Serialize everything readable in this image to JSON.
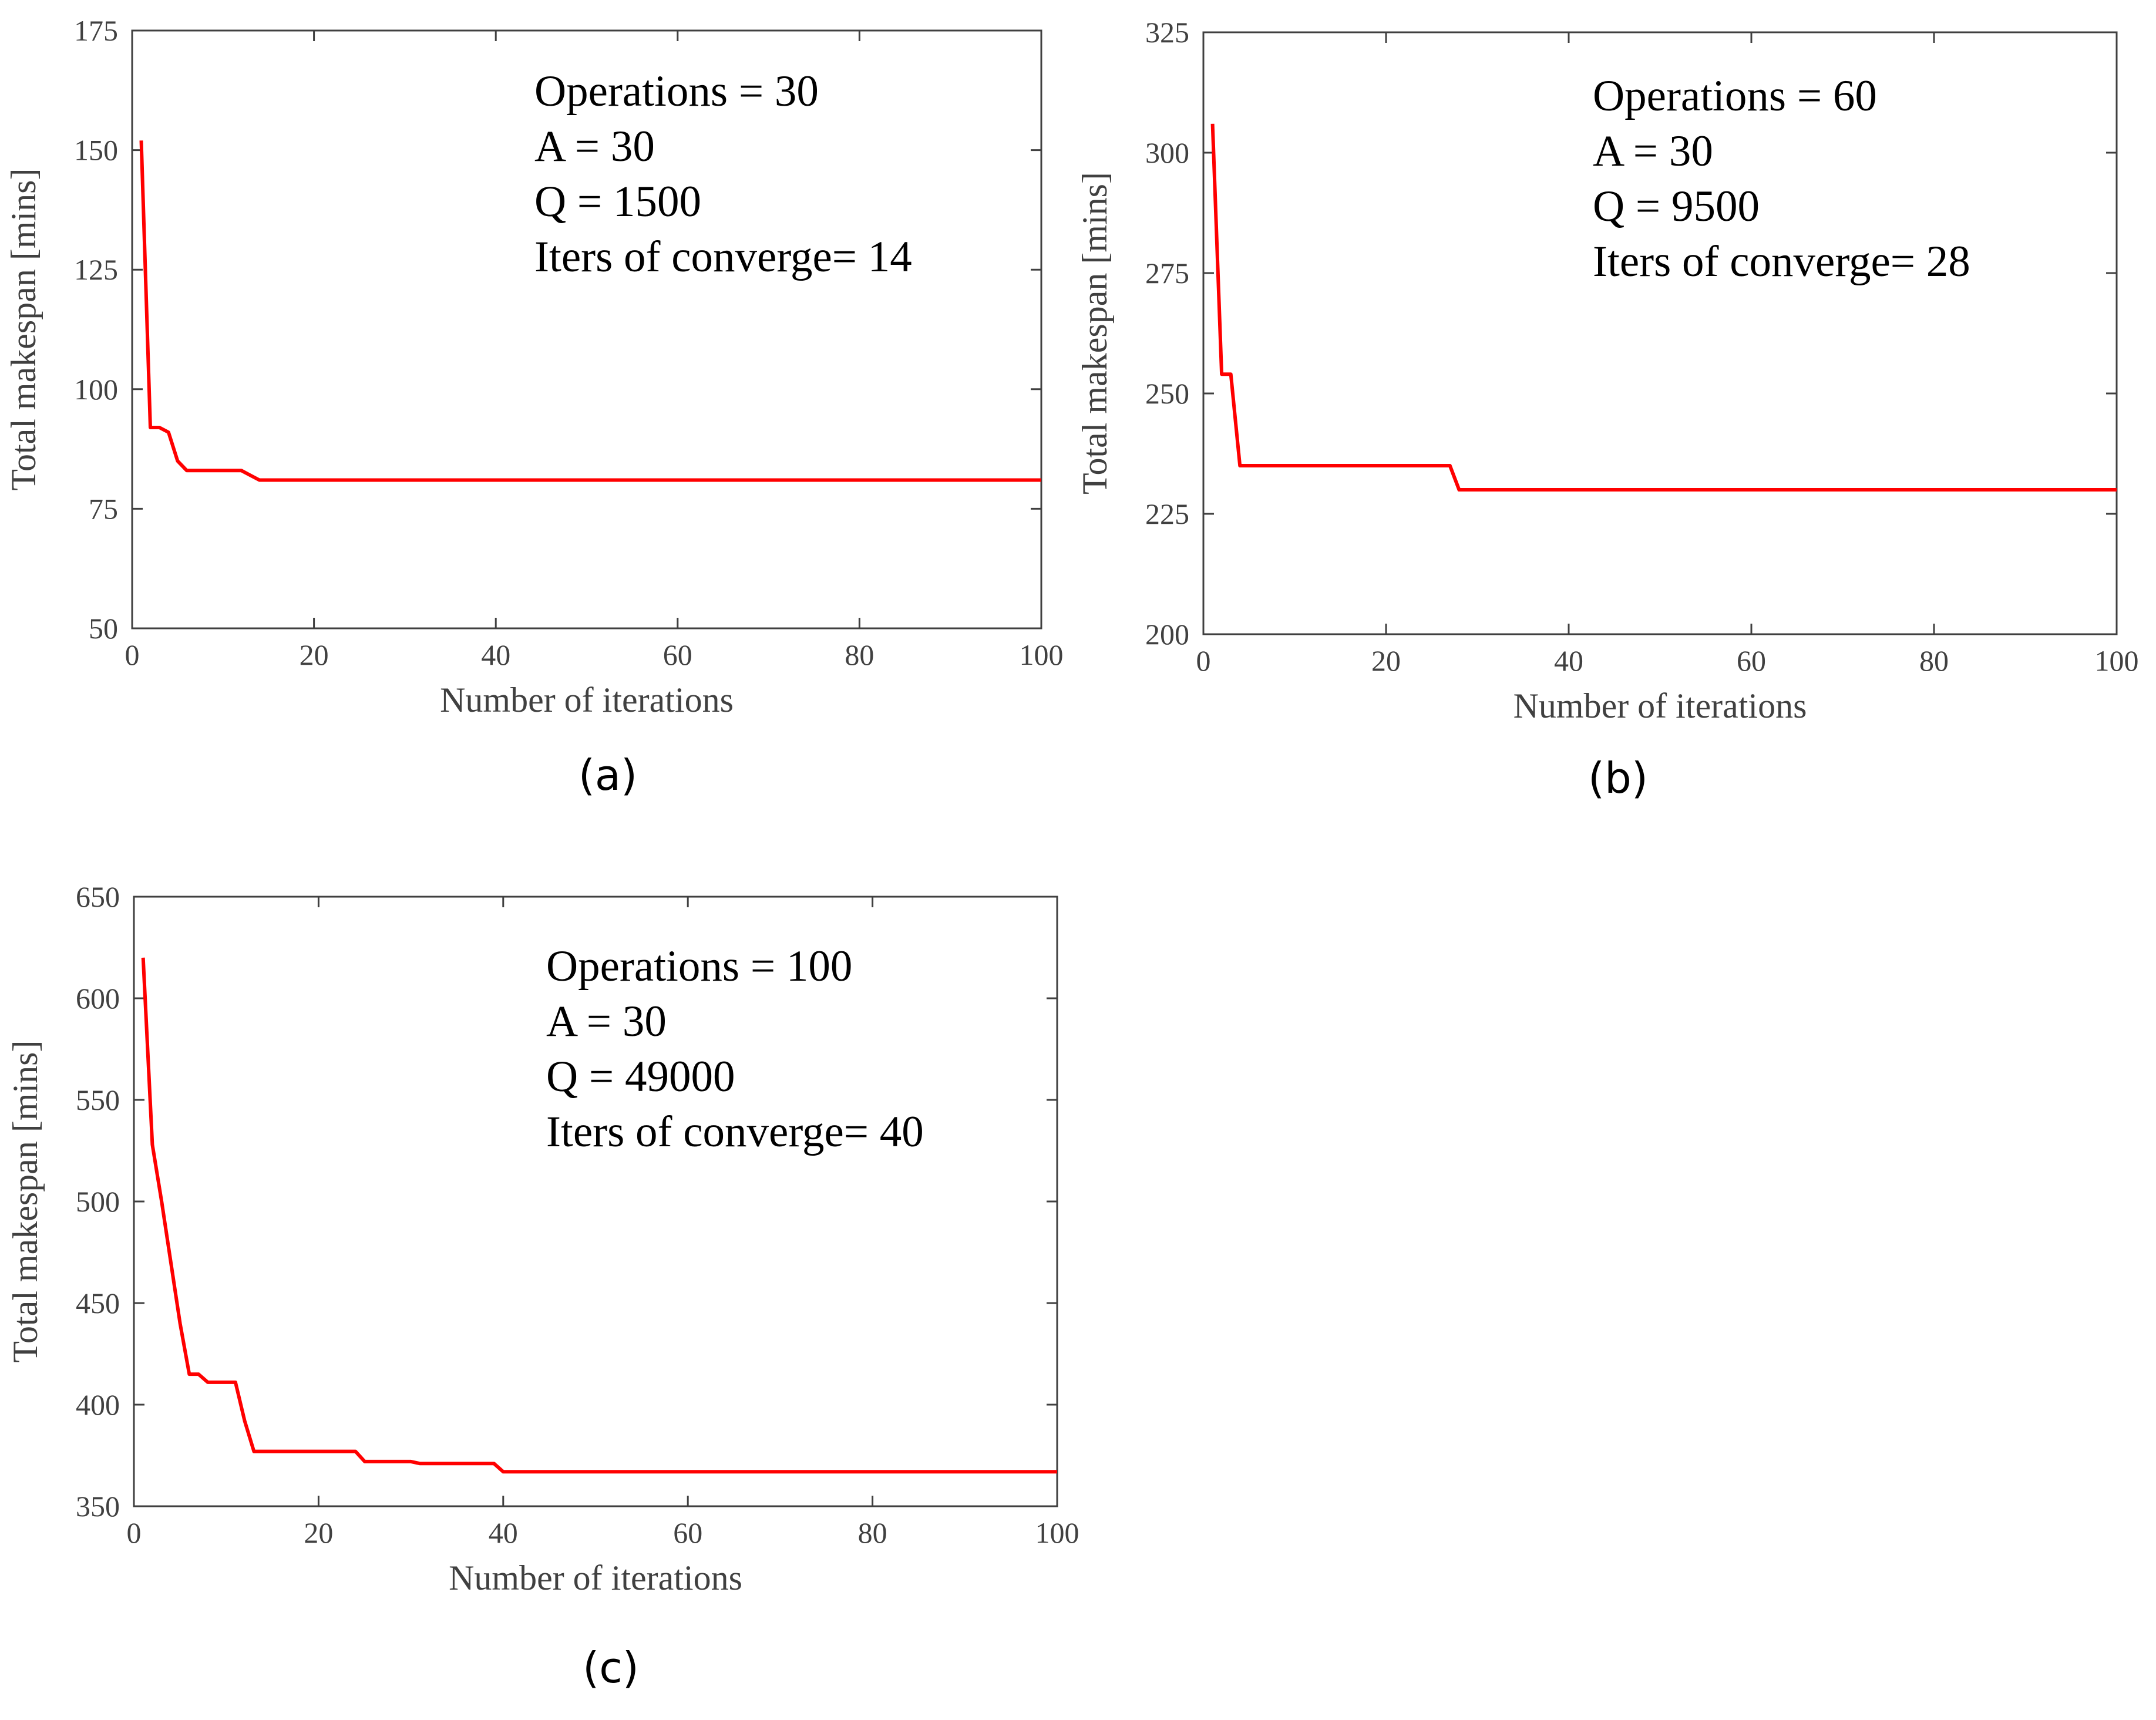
{
  "colors": {
    "series": "#ff0000",
    "axis": "#404040"
  },
  "chart_data": [
    {
      "id": "a",
      "type": "line",
      "caption": "(a)",
      "xlabel": "Number of iterations",
      "ylabel": "Total makespan [mins]",
      "xlim": [
        0,
        100
      ],
      "ylim": [
        50,
        175
      ],
      "xticks": [
        0,
        20,
        40,
        60,
        80,
        100
      ],
      "yticks": [
        50,
        75,
        100,
        125,
        150,
        175
      ],
      "grid": false,
      "annotation": [
        "Operations = 30",
        "A = 30",
        "Q = 1500",
        "Iters of converge= 14"
      ],
      "series": [
        {
          "name": "makespan",
          "x": [
            1,
            2,
            3,
            4,
            5,
            6,
            8,
            10,
            12,
            13,
            14,
            20,
            40,
            60,
            80,
            100
          ],
          "y": [
            152,
            92,
            92,
            91,
            85,
            83,
            83,
            83,
            83,
            82,
            81,
            81,
            81,
            81,
            81,
            81
          ]
        }
      ]
    },
    {
      "id": "b",
      "type": "line",
      "caption": "(b)",
      "xlabel": "Number of iterations",
      "ylabel": "Total makespan [mins]",
      "xlim": [
        0,
        100
      ],
      "ylim": [
        200,
        325
      ],
      "xticks": [
        0,
        20,
        40,
        60,
        80,
        100
      ],
      "yticks": [
        200,
        225,
        250,
        275,
        300,
        325
      ],
      "grid": false,
      "annotation": [
        "Operations = 60",
        "A = 30",
        "Q = 9500",
        "Iters of converge= 28"
      ],
      "series": [
        {
          "name": "makespan",
          "x": [
            1,
            2,
            3,
            4,
            10,
            20,
            27,
            28,
            40,
            60,
            80,
            100
          ],
          "y": [
            306,
            254,
            254,
            235,
            235,
            235,
            235,
            230,
            230,
            230,
            230,
            230
          ]
        }
      ]
    },
    {
      "id": "c",
      "type": "line",
      "caption": "(c)",
      "xlabel": "Number of iterations",
      "ylabel": "Total makespan [mins]",
      "xlim": [
        0,
        100
      ],
      "ylim": [
        350,
        650
      ],
      "xticks": [
        0,
        20,
        40,
        60,
        80,
        100
      ],
      "yticks": [
        350,
        400,
        450,
        500,
        550,
        600,
        650
      ],
      "grid": false,
      "annotation": [
        "Operations = 100",
        "A = 30",
        "Q = 49000",
        "Iters of converge= 40"
      ],
      "series": [
        {
          "name": "makespan",
          "x": [
            1,
            2,
            3,
            4,
            5,
            6,
            7,
            8,
            9,
            10,
            11,
            12,
            13,
            20,
            24,
            25,
            30,
            31,
            39,
            40,
            60,
            80,
            100
          ],
          "y": [
            620,
            528,
            500,
            470,
            440,
            415,
            415,
            411,
            411,
            411,
            411,
            392,
            377,
            377,
            377,
            372,
            372,
            371,
            371,
            367,
            367,
            367,
            367
          ]
        }
      ]
    }
  ]
}
